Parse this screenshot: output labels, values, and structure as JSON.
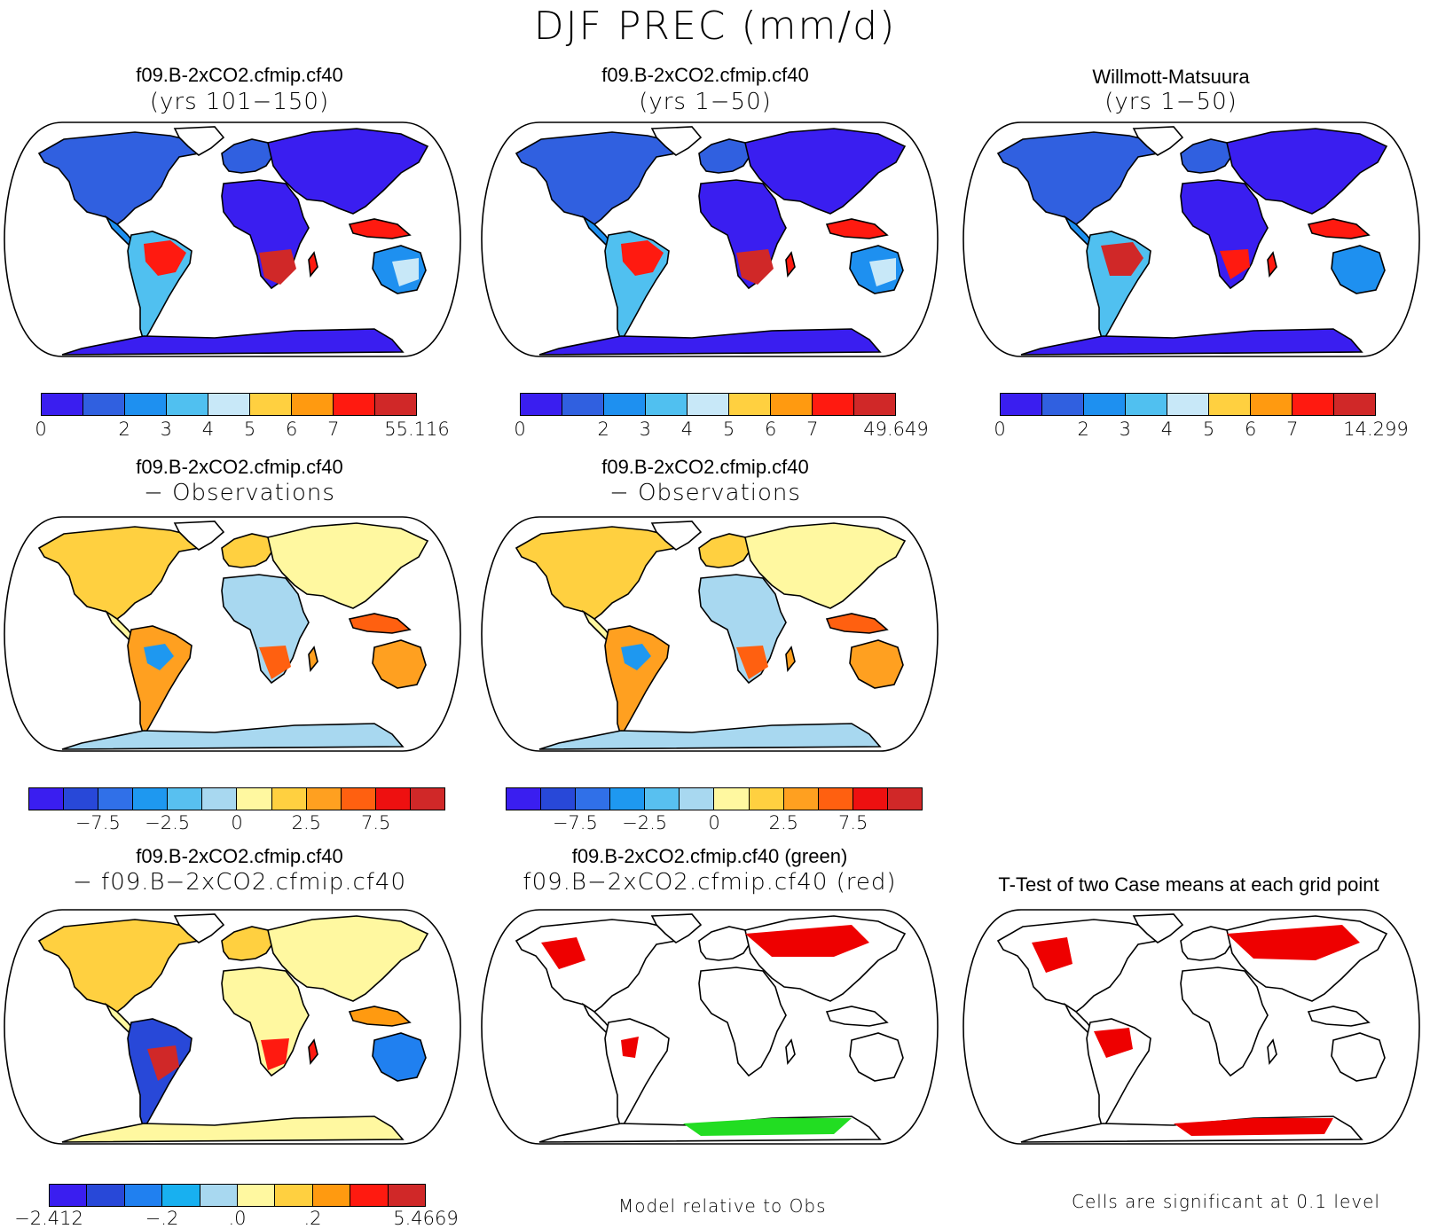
{
  "title": "DJF PREC (mm/d)",
  "panels": [
    {
      "id": "p1",
      "title": "f09.B-2xCO2.cfmip.cf40",
      "subtitle": "(yrs 101−150)",
      "kind": "abs"
    },
    {
      "id": "p2",
      "title": "f09.B-2xCO2.cfmip.cf40",
      "subtitle": "(yrs 1−50)",
      "kind": "abs"
    },
    {
      "id": "p3",
      "title": "Willmott-Matsuura",
      "subtitle": "(yrs 1−50)",
      "kind": "abs"
    },
    {
      "id": "p4",
      "title": "f09.B-2xCO2.cfmip.cf40",
      "subtitle": "− Observations",
      "kind": "diff"
    },
    {
      "id": "p5",
      "title": "f09.B-2xCO2.cfmip.cf40",
      "subtitle": "− Observations",
      "kind": "diff"
    },
    {
      "id": "p6",
      "title": "f09.B-2xCO2.cfmip.cf40",
      "subtitle": "− f09.B−2xCO2.cfmip.cf40",
      "kind": "casediff"
    },
    {
      "id": "p7",
      "title": "f09.B-2xCO2.cfmip.cf40 (green)",
      "subtitle": "f09.B−2xCO2.cfmip.cf40 (red)",
      "kind": "sig2"
    },
    {
      "id": "p8",
      "title": "T-Test of two Case means at each grid point",
      "subtitle": "",
      "kind": "sig"
    }
  ],
  "colorbars": {
    "abs": {
      "colors": [
        "#3a1ef0",
        "#3060e0",
        "#1e90f0",
        "#50c0f0",
        "#c8e8f8",
        "#ffd040",
        "#ff9a10",
        "#ff1a10",
        "#d02828"
      ],
      "ticks_p1": [
        "0",
        "2",
        "3",
        "4",
        "5",
        "6",
        "7",
        "55.116"
      ],
      "ticks_p2": [
        "0",
        "2",
        "3",
        "4",
        "5",
        "6",
        "7",
        "49.649"
      ],
      "ticks_p3": [
        "0",
        "2",
        "3",
        "4",
        "5",
        "6",
        "7",
        "14.299"
      ]
    },
    "diff": {
      "colors": [
        "#3a1ef0",
        "#2848d8",
        "#3070e8",
        "#1e98f0",
        "#58c0f0",
        "#a8d8f0",
        "#fff8a0",
        "#ffd040",
        "#ffa020",
        "#ff6010",
        "#ee1010",
        "#d02828"
      ],
      "ticks": [
        "−7.5",
        "−2.5",
        "0",
        "2.5",
        "7.5"
      ]
    },
    "casediff": {
      "colors": [
        "#3a1ef0",
        "#2848d8",
        "#2080f0",
        "#18b0f0",
        "#a8d8f0",
        "#fff8a0",
        "#ffd040",
        "#ff9a10",
        "#ff1a10",
        "#d02828"
      ],
      "ticks": [
        "−2.412",
        "−.2",
        ".0",
        ".2",
        "5.4669"
      ]
    }
  },
  "footers": {
    "model_relative": "Model relative to Obs",
    "significance": "Cells are significant at 0.1 level"
  }
}
